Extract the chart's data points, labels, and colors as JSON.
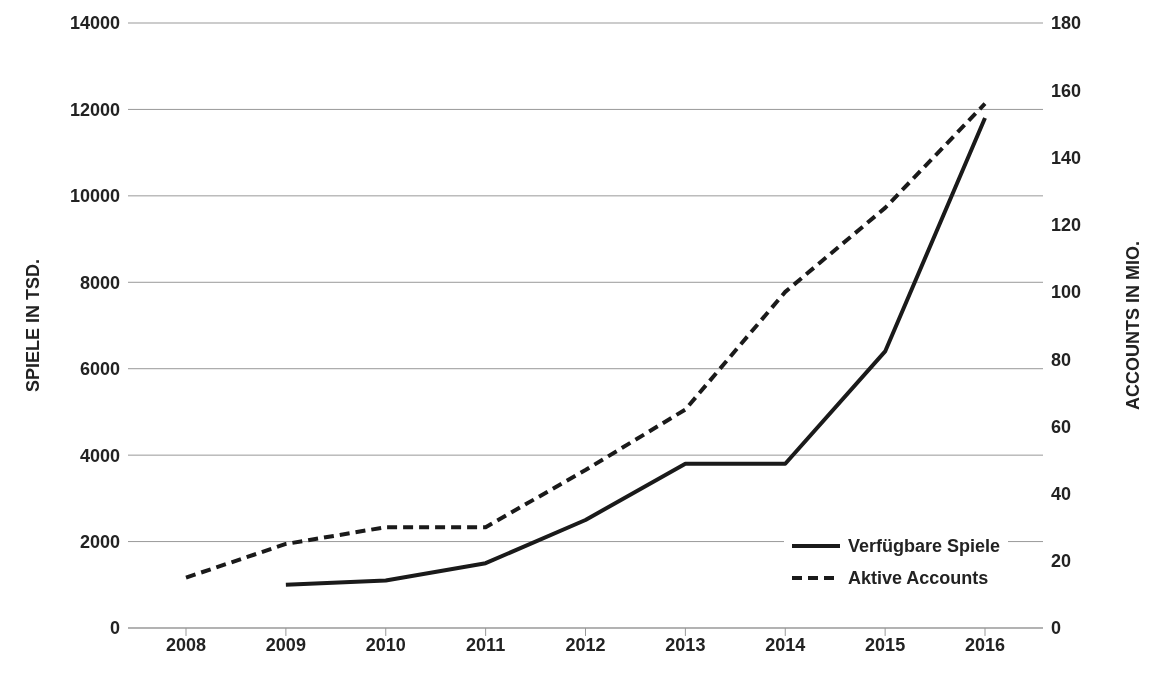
{
  "chart_data": {
    "type": "line",
    "categories": [
      "2008",
      "2009",
      "2010",
      "2011",
      "2012",
      "2013",
      "2014",
      "2015",
      "2016"
    ],
    "series": [
      {
        "name": "Verfügbare Spiele",
        "color": "#1a1a1a",
        "line_style": "solid",
        "values": [
          null,
          1000,
          1100,
          1500,
          2500,
          3800,
          3800,
          6400,
          11800
        ]
      },
      {
        "name": "Aktive Accounts",
        "color": "#1a1a1a",
        "line_style": "dashed",
        "axis": "y2",
        "values": [
          15,
          25,
          30,
          30,
          47,
          65,
          100,
          125,
          156
        ]
      }
    ],
    "ylabel": "SPIELE IN TSD.",
    "y2label": "ACCOUNTS IN MIO.",
    "ylim": [
      0,
      14000
    ],
    "yticks": [
      0,
      2000,
      4000,
      6000,
      8000,
      10000,
      12000,
      14000
    ],
    "y2lim": [
      0,
      180
    ],
    "y2ticks": [
      0,
      20,
      40,
      60,
      80,
      100,
      120,
      140,
      160,
      180
    ],
    "grid": "y",
    "legend": "bottom right",
    "marker": "none"
  }
}
